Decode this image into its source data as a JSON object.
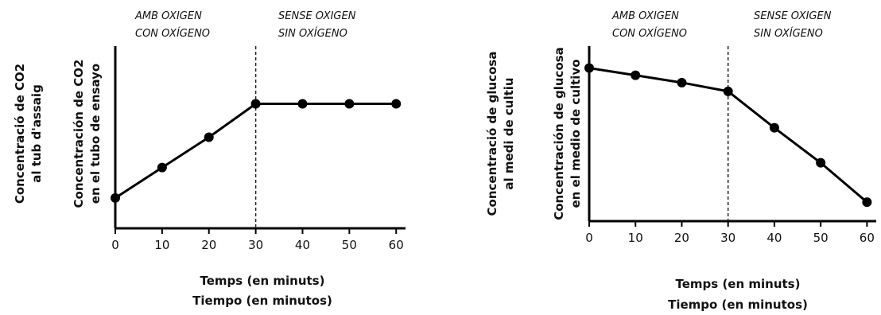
{
  "chart_data": [
    {
      "type": "line",
      "x": [
        0,
        10,
        20,
        30,
        40,
        50,
        60
      ],
      "y": [
        2,
        4,
        6,
        8.2,
        8.2,
        8.2,
        8.2
      ],
      "xlim": [
        0,
        62
      ],
      "ylim": [
        0,
        12
      ],
      "xticks": [
        "0",
        "10",
        "20",
        "30",
        "40",
        "50",
        "60"
      ],
      "xlabel": [
        "Temps (en minuts)",
        "Tiempo (en minutos)"
      ],
      "ylabel_outer": [
        "Concentració de CO2",
        "al tub d'assaig"
      ],
      "ylabel_inner": [
        "Concentración de CO2",
        "en el tubo de ensayo"
      ],
      "divider_x": 30,
      "regions": [
        {
          "lines": [
            "AMB OXIGEN",
            "CON OXÍGENO"
          ]
        },
        {
          "lines": [
            "SENSE OXIGEN",
            "SIN OXÍGENO"
          ]
        }
      ]
    },
    {
      "type": "line",
      "x": [
        0,
        10,
        20,
        30,
        40,
        50,
        60
      ],
      "y": [
        10.5,
        10.0,
        9.5,
        8.9,
        6.4,
        4.0,
        1.3
      ],
      "xlim": [
        0,
        62
      ],
      "ylim": [
        0,
        12
      ],
      "xticks": [
        "0",
        "10",
        "20",
        "30",
        "40",
        "50",
        "60"
      ],
      "xlabel": [
        "Temps (en minuts)",
        "Tiempo (en minutos)"
      ],
      "ylabel_outer": [
        "Concentració de glucosa",
        "al medi de cultiu"
      ],
      "ylabel_inner": [
        "Concentración de glucosa",
        "en el medio de cultivo"
      ],
      "divider_x": 30,
      "regions": [
        {
          "lines": [
            "AMB OXIGEN",
            "CON OXÍGENO"
          ]
        },
        {
          "lines": [
            "SENSE OXIGEN",
            "SIN OXÍGENO"
          ]
        }
      ]
    }
  ]
}
